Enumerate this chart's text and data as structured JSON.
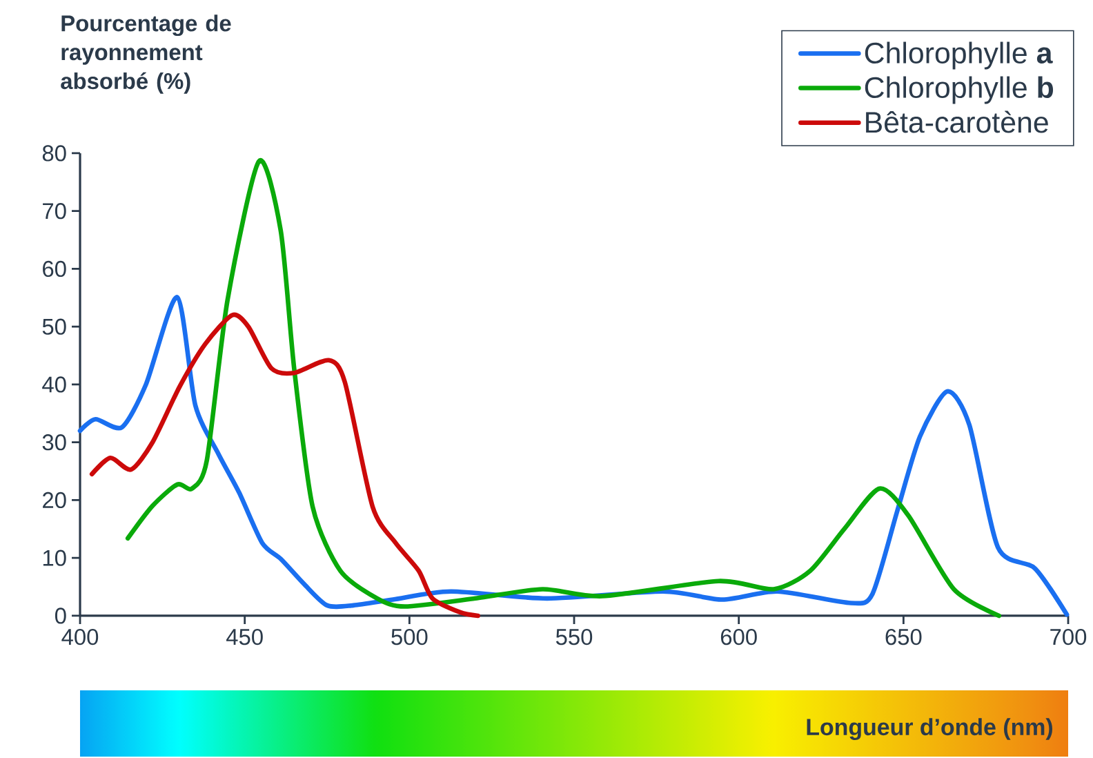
{
  "chart_data": {
    "type": "line",
    "xlabel": "Longueur d’onde (nm)",
    "ylabel": "Pourcentage de rayonnement absorbé (%)",
    "xlim": [
      400,
      700
    ],
    "ylim": [
      0,
      80
    ],
    "xticks": [
      400,
      450,
      500,
      550,
      600,
      650,
      700
    ],
    "yticks": [
      0,
      10,
      20,
      30,
      40,
      50,
      60,
      70,
      80
    ],
    "legend": "top right",
    "series": [
      {
        "name": "Chlorophylle **a**",
        "color": "#1a6ff0",
        "x": [
          400,
          404.7,
          412.7,
          420,
          429.5,
          435,
          442,
          448.3,
          455.3,
          461,
          468,
          475,
          483,
          495,
          512.6,
          541.8,
          577,
          595,
          611.7,
          634,
          640.6,
          648.1,
          655,
          663.3,
          670,
          678.7,
          689.9,
          699.6
        ],
        "values": [
          32,
          34,
          32.6,
          40,
          55.1,
          36.4,
          28,
          21.3,
          12.6,
          9.8,
          5.5,
          1.8,
          1.8,
          2.8,
          4.2,
          3.0,
          4.2,
          2.8,
          4.2,
          2.2,
          3.8,
          18.1,
          31,
          38.8,
          33,
          11.8,
          8.2,
          0.2
        ]
      },
      {
        "name": "Chlorophylle **b**",
        "color": "#0aaa0a",
        "x": [
          414.5,
          422,
          429.5,
          434,
          438.5,
          444.8,
          454.3,
          460.9,
          465,
          470.6,
          479,
          490.2,
          498.6,
          520,
          540.4,
          558.6,
          593.8,
          610.6,
          621.7,
          632,
          642.7,
          651.4,
          665.3,
          679
        ],
        "values": [
          13.4,
          19,
          22.7,
          22,
          26.9,
          54.7,
          78.6,
          66.7,
          42.8,
          18.9,
          7.8,
          3,
          1.6,
          3.0,
          4.6,
          3.4,
          6.0,
          4.6,
          7.8,
          15,
          22,
          17.4,
          4.6,
          0
        ]
      },
      {
        "name": "Bêta-carotène",
        "color": "#cc0a0a",
        "x": [
          403.6,
          409.2,
          415.5,
          422,
          430.2,
          438,
          446.2,
          451.1,
          458.1,
          465,
          475.5,
          480.4,
          488.8,
          495.8,
          502.8,
          507,
          515.4,
          520.8
        ],
        "values": [
          24.5,
          27.3,
          25.3,
          30,
          39.6,
          47,
          52,
          50,
          42.8,
          42,
          44.2,
          40.4,
          18.9,
          12.6,
          7.8,
          3,
          0.6,
          0
        ]
      }
    ]
  }
}
